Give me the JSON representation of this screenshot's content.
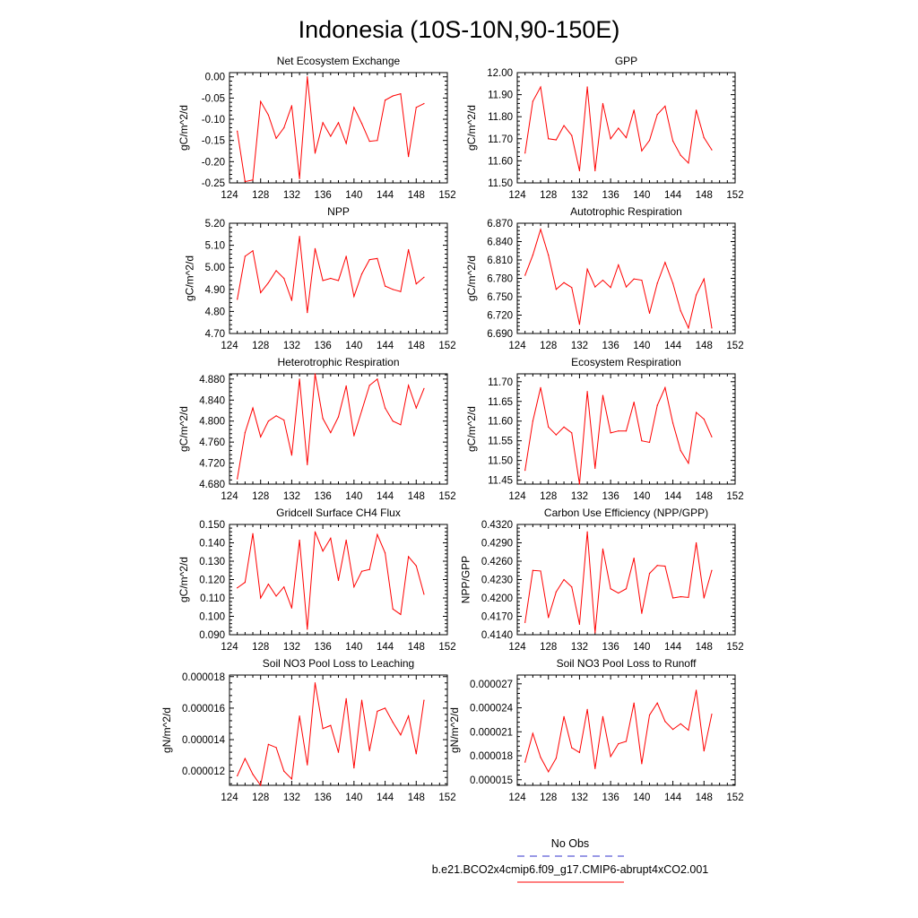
{
  "title": "Indonesia (10S-10N,90-150E)",
  "colors": {
    "series": "#ff0000",
    "obs": "#3333cc",
    "axis": "#000000"
  },
  "legend": {
    "obs_label": "No Obs",
    "model_label": "b.e21.BCO2x4cmip6.f09_g17.CMIP6-abrupt4xCO2.001"
  },
  "chart_data": [
    {
      "type": "line",
      "title": "Net Ecosystem Exchange",
      "ylabel": "gC/m^2/d",
      "xlabel": "",
      "xlim": [
        124,
        152
      ],
      "xticks": [
        "124",
        "128",
        "132",
        "136",
        "140",
        "144",
        "148",
        "152"
      ],
      "ylim": [
        -0.25,
        0.01
      ],
      "yticks": [
        "0.00",
        "-0.05",
        "-0.10",
        "-0.15",
        "-0.20",
        "-0.25"
      ],
      "x": [
        125,
        126,
        127,
        128,
        129,
        130,
        131,
        132,
        133,
        134,
        135,
        136,
        137,
        138,
        139,
        140,
        141,
        142,
        143,
        144,
        145,
        146,
        147,
        148,
        149
      ],
      "values": [
        -0.128,
        -0.247,
        -0.243,
        -0.058,
        -0.09,
        -0.145,
        -0.12,
        -0.068,
        -0.24,
        0.0,
        -0.18,
        -0.108,
        -0.14,
        -0.108,
        -0.157,
        -0.072,
        -0.11,
        -0.152,
        -0.15,
        -0.055,
        -0.045,
        -0.04,
        -0.188,
        -0.072,
        -0.063
      ]
    },
    {
      "type": "line",
      "title": "GPP",
      "ylabel": "gC/m^2/d",
      "xlabel": "",
      "xlim": [
        124,
        152
      ],
      "xticks": [
        "124",
        "128",
        "132",
        "136",
        "140",
        "144",
        "148",
        "152"
      ],
      "ylim": [
        11.5,
        12.0
      ],
      "yticks": [
        "12.00",
        "11.90",
        "11.80",
        "11.70",
        "11.60",
        "11.50"
      ],
      "x": [
        125,
        126,
        127,
        128,
        129,
        130,
        131,
        132,
        133,
        134,
        135,
        136,
        137,
        138,
        139,
        140,
        141,
        142,
        143,
        144,
        145,
        146,
        147,
        148,
        149
      ],
      "values": [
        11.635,
        11.87,
        11.935,
        11.7,
        11.695,
        11.76,
        11.715,
        11.555,
        11.935,
        11.555,
        11.86,
        11.7,
        11.748,
        11.705,
        11.83,
        11.645,
        11.693,
        11.81,
        11.848,
        11.69,
        11.625,
        11.59,
        11.83,
        11.705,
        11.65
      ]
    },
    {
      "type": "line",
      "title": "NPP",
      "ylabel": "gC/m^2/d",
      "xlabel": "",
      "xlim": [
        124,
        152
      ],
      "xticks": [
        "124",
        "128",
        "132",
        "136",
        "140",
        "144",
        "148",
        "152"
      ],
      "ylim": [
        4.7,
        5.2
      ],
      "yticks": [
        "5.20",
        "5.10",
        "5.00",
        "4.90",
        "4.80",
        "4.70"
      ],
      "x": [
        125,
        126,
        127,
        128,
        129,
        130,
        131,
        132,
        133,
        134,
        135,
        136,
        137,
        138,
        139,
        140,
        141,
        142,
        143,
        144,
        145,
        146,
        147,
        148,
        149
      ],
      "values": [
        4.855,
        5.05,
        5.075,
        4.885,
        4.93,
        4.985,
        4.95,
        4.85,
        5.14,
        4.795,
        5.085,
        4.94,
        4.95,
        4.94,
        5.05,
        4.868,
        4.97,
        5.035,
        5.04,
        4.915,
        4.9,
        4.89,
        5.08,
        4.925,
        4.955
      ]
    },
    {
      "type": "line",
      "title": "Autotrophic Respiration",
      "ylabel": "gC/m^2/d",
      "xlabel": "",
      "xlim": [
        124,
        152
      ],
      "xticks": [
        "124",
        "128",
        "132",
        "136",
        "140",
        "144",
        "148",
        "152"
      ],
      "ylim": [
        6.69,
        6.87
      ],
      "yticks": [
        "6.870",
        "6.840",
        "6.810",
        "6.780",
        "6.750",
        "6.720",
        "6.690"
      ],
      "x": [
        125,
        126,
        127,
        128,
        129,
        130,
        131,
        132,
        133,
        134,
        135,
        136,
        137,
        138,
        139,
        140,
        141,
        142,
        143,
        144,
        145,
        146,
        147,
        148,
        149
      ],
      "values": [
        6.785,
        6.818,
        6.86,
        6.818,
        6.762,
        6.773,
        6.765,
        6.705,
        6.795,
        6.766,
        6.777,
        6.765,
        6.802,
        6.766,
        6.779,
        6.777,
        6.723,
        6.772,
        6.806,
        6.772,
        6.727,
        6.699,
        6.753,
        6.779,
        6.699
      ]
    },
    {
      "type": "line",
      "title": "Heterotrophic Respiration",
      "ylabel": "gC/m^2/d",
      "xlabel": "",
      "xlim": [
        124,
        152
      ],
      "xticks": [
        "124",
        "128",
        "132",
        "136",
        "140",
        "144",
        "148",
        "152"
      ],
      "ylim": [
        4.68,
        4.89
      ],
      "yticks": [
        "4.880",
        "4.840",
        "4.800",
        "4.760",
        "4.720",
        "4.680"
      ],
      "x": [
        125,
        126,
        127,
        128,
        129,
        130,
        131,
        132,
        133,
        134,
        135,
        136,
        137,
        138,
        139,
        140,
        141,
        142,
        143,
        144,
        145,
        146,
        147,
        148,
        149
      ],
      "values": [
        4.69,
        4.778,
        4.825,
        4.77,
        4.8,
        4.81,
        4.802,
        4.735,
        4.88,
        4.717,
        4.89,
        4.805,
        4.778,
        4.808,
        4.867,
        4.772,
        4.82,
        4.868,
        4.88,
        4.825,
        4.8,
        4.793,
        4.868,
        4.825,
        4.862
      ]
    },
    {
      "type": "line",
      "title": "Ecosystem Respiration",
      "ylabel": "gC/m^2/d",
      "xlabel": "",
      "xlim": [
        124,
        152
      ],
      "xticks": [
        "124",
        "128",
        "132",
        "136",
        "140",
        "144",
        "148",
        "152"
      ],
      "ylim": [
        11.44,
        11.72
      ],
      "yticks": [
        "11.70",
        "11.65",
        "11.60",
        "11.55",
        "11.50",
        "11.45"
      ],
      "x": [
        125,
        126,
        127,
        128,
        129,
        130,
        131,
        132,
        133,
        134,
        135,
        136,
        137,
        138,
        139,
        140,
        141,
        142,
        143,
        144,
        145,
        146,
        147,
        148,
        149
      ],
      "values": [
        11.475,
        11.6,
        11.685,
        11.585,
        11.565,
        11.585,
        11.57,
        11.44,
        11.675,
        11.48,
        11.665,
        11.57,
        11.575,
        11.575,
        11.648,
        11.55,
        11.546,
        11.64,
        11.685,
        11.595,
        11.525,
        11.493,
        11.622,
        11.605,
        11.56
      ]
    },
    {
      "type": "line",
      "title": "Gridcell Surface CH4 Flux",
      "ylabel": "gC/m^2/d",
      "xlabel": "",
      "xlim": [
        124,
        152
      ],
      "xticks": [
        "124",
        "128",
        "132",
        "136",
        "140",
        "144",
        "148",
        "152"
      ],
      "ylim": [
        0.09,
        0.15
      ],
      "yticks": [
        "0.150",
        "0.140",
        "0.130",
        "0.120",
        "0.110",
        "0.100",
        "0.090"
      ],
      "x": [
        125,
        126,
        127,
        128,
        129,
        130,
        131,
        132,
        133,
        134,
        135,
        136,
        137,
        138,
        139,
        140,
        141,
        142,
        143,
        144,
        145,
        146,
        147,
        148,
        149
      ],
      "values": [
        0.1155,
        0.1185,
        0.145,
        0.11,
        0.1175,
        0.111,
        0.116,
        0.1045,
        0.1415,
        0.093,
        0.146,
        0.1355,
        0.1425,
        0.1195,
        0.1415,
        0.116,
        0.1245,
        0.1255,
        0.1445,
        0.1345,
        0.104,
        0.101,
        0.1325,
        0.1275,
        0.112
      ]
    },
    {
      "type": "line",
      "title": "Carbon Use Efficiency (NPP/GPP)",
      "ylabel": "NPP/GPP",
      "xlabel": "",
      "xlim": [
        124,
        152
      ],
      "xticks": [
        "124",
        "128",
        "132",
        "136",
        "140",
        "144",
        "148",
        "152"
      ],
      "ylim": [
        0.414,
        0.432
      ],
      "yticks": [
        "0.4320",
        "0.4290",
        "0.4260",
        "0.4230",
        "0.4200",
        "0.4170",
        "0.4140"
      ],
      "x": [
        125,
        126,
        127,
        128,
        129,
        130,
        131,
        132,
        133,
        134,
        135,
        136,
        137,
        138,
        139,
        140,
        141,
        142,
        143,
        144,
        145,
        146,
        147,
        148,
        149
      ],
      "values": [
        0.416,
        0.4245,
        0.4244,
        0.4168,
        0.421,
        0.423,
        0.4218,
        0.4157,
        0.4308,
        0.4143,
        0.428,
        0.4215,
        0.4208,
        0.4215,
        0.4265,
        0.4175,
        0.424,
        0.4253,
        0.4252,
        0.42,
        0.4202,
        0.4201,
        0.429,
        0.42,
        0.4245
      ]
    },
    {
      "type": "line",
      "title": "Soil NO3 Pool Loss to Leaching",
      "ylabel": "gN/m^2/d",
      "xlabel": "",
      "xlim": [
        124,
        152
      ],
      "xticks": [
        "124",
        "128",
        "132",
        "136",
        "140",
        "144",
        "148",
        "152"
      ],
      "ylim": [
        1.11e-05,
        1.81e-05
      ],
      "yticks": [
        "0.000018",
        "0.000016",
        "0.000014",
        "0.000012"
      ],
      "x": [
        125,
        126,
        127,
        128,
        129,
        130,
        131,
        132,
        133,
        134,
        135,
        136,
        137,
        138,
        139,
        140,
        141,
        142,
        143,
        144,
        145,
        146,
        147,
        148,
        149
      ],
      "values": [
        1.17e-05,
        1.28e-05,
        1.18e-05,
        1.11e-05,
        1.37e-05,
        1.35e-05,
        1.2e-05,
        1.15e-05,
        1.55e-05,
        1.24e-05,
        1.76e-05,
        1.47e-05,
        1.49e-05,
        1.32e-05,
        1.66e-05,
        1.22e-05,
        1.65e-05,
        1.33e-05,
        1.58e-05,
        1.6e-05,
        1.51e-05,
        1.43e-05,
        1.55e-05,
        1.31e-05,
        1.65e-05
      ]
    },
    {
      "type": "line",
      "title": "Soil NO3 Pool Loss to Runoff",
      "ylabel": "gN/m^2/d",
      "xlabel": "",
      "xlim": [
        124,
        152
      ],
      "xticks": [
        "124",
        "128",
        "132",
        "136",
        "140",
        "144",
        "148",
        "152"
      ],
      "ylim": [
        1.43e-05,
        2.81e-05
      ],
      "yticks": [
        "0.000027",
        "0.000024",
        "0.000021",
        "0.000018",
        "0.000015"
      ],
      "x": [
        125,
        126,
        127,
        128,
        129,
        130,
        131,
        132,
        133,
        134,
        135,
        136,
        137,
        138,
        139,
        140,
        141,
        142,
        143,
        144,
        145,
        146,
        147,
        148,
        149
      ],
      "values": [
        1.72e-05,
        2.08e-05,
        1.78e-05,
        1.6e-05,
        1.77e-05,
        2.29e-05,
        1.9e-05,
        1.84e-05,
        2.38e-05,
        1.64e-05,
        2.29e-05,
        1.79e-05,
        1.95e-05,
        1.98e-05,
        2.46e-05,
        1.7e-05,
        2.31e-05,
        2.46e-05,
        2.23e-05,
        2.13e-05,
        2.2e-05,
        2.12e-05,
        2.62e-05,
        1.86e-05,
        2.32e-05
      ]
    }
  ]
}
